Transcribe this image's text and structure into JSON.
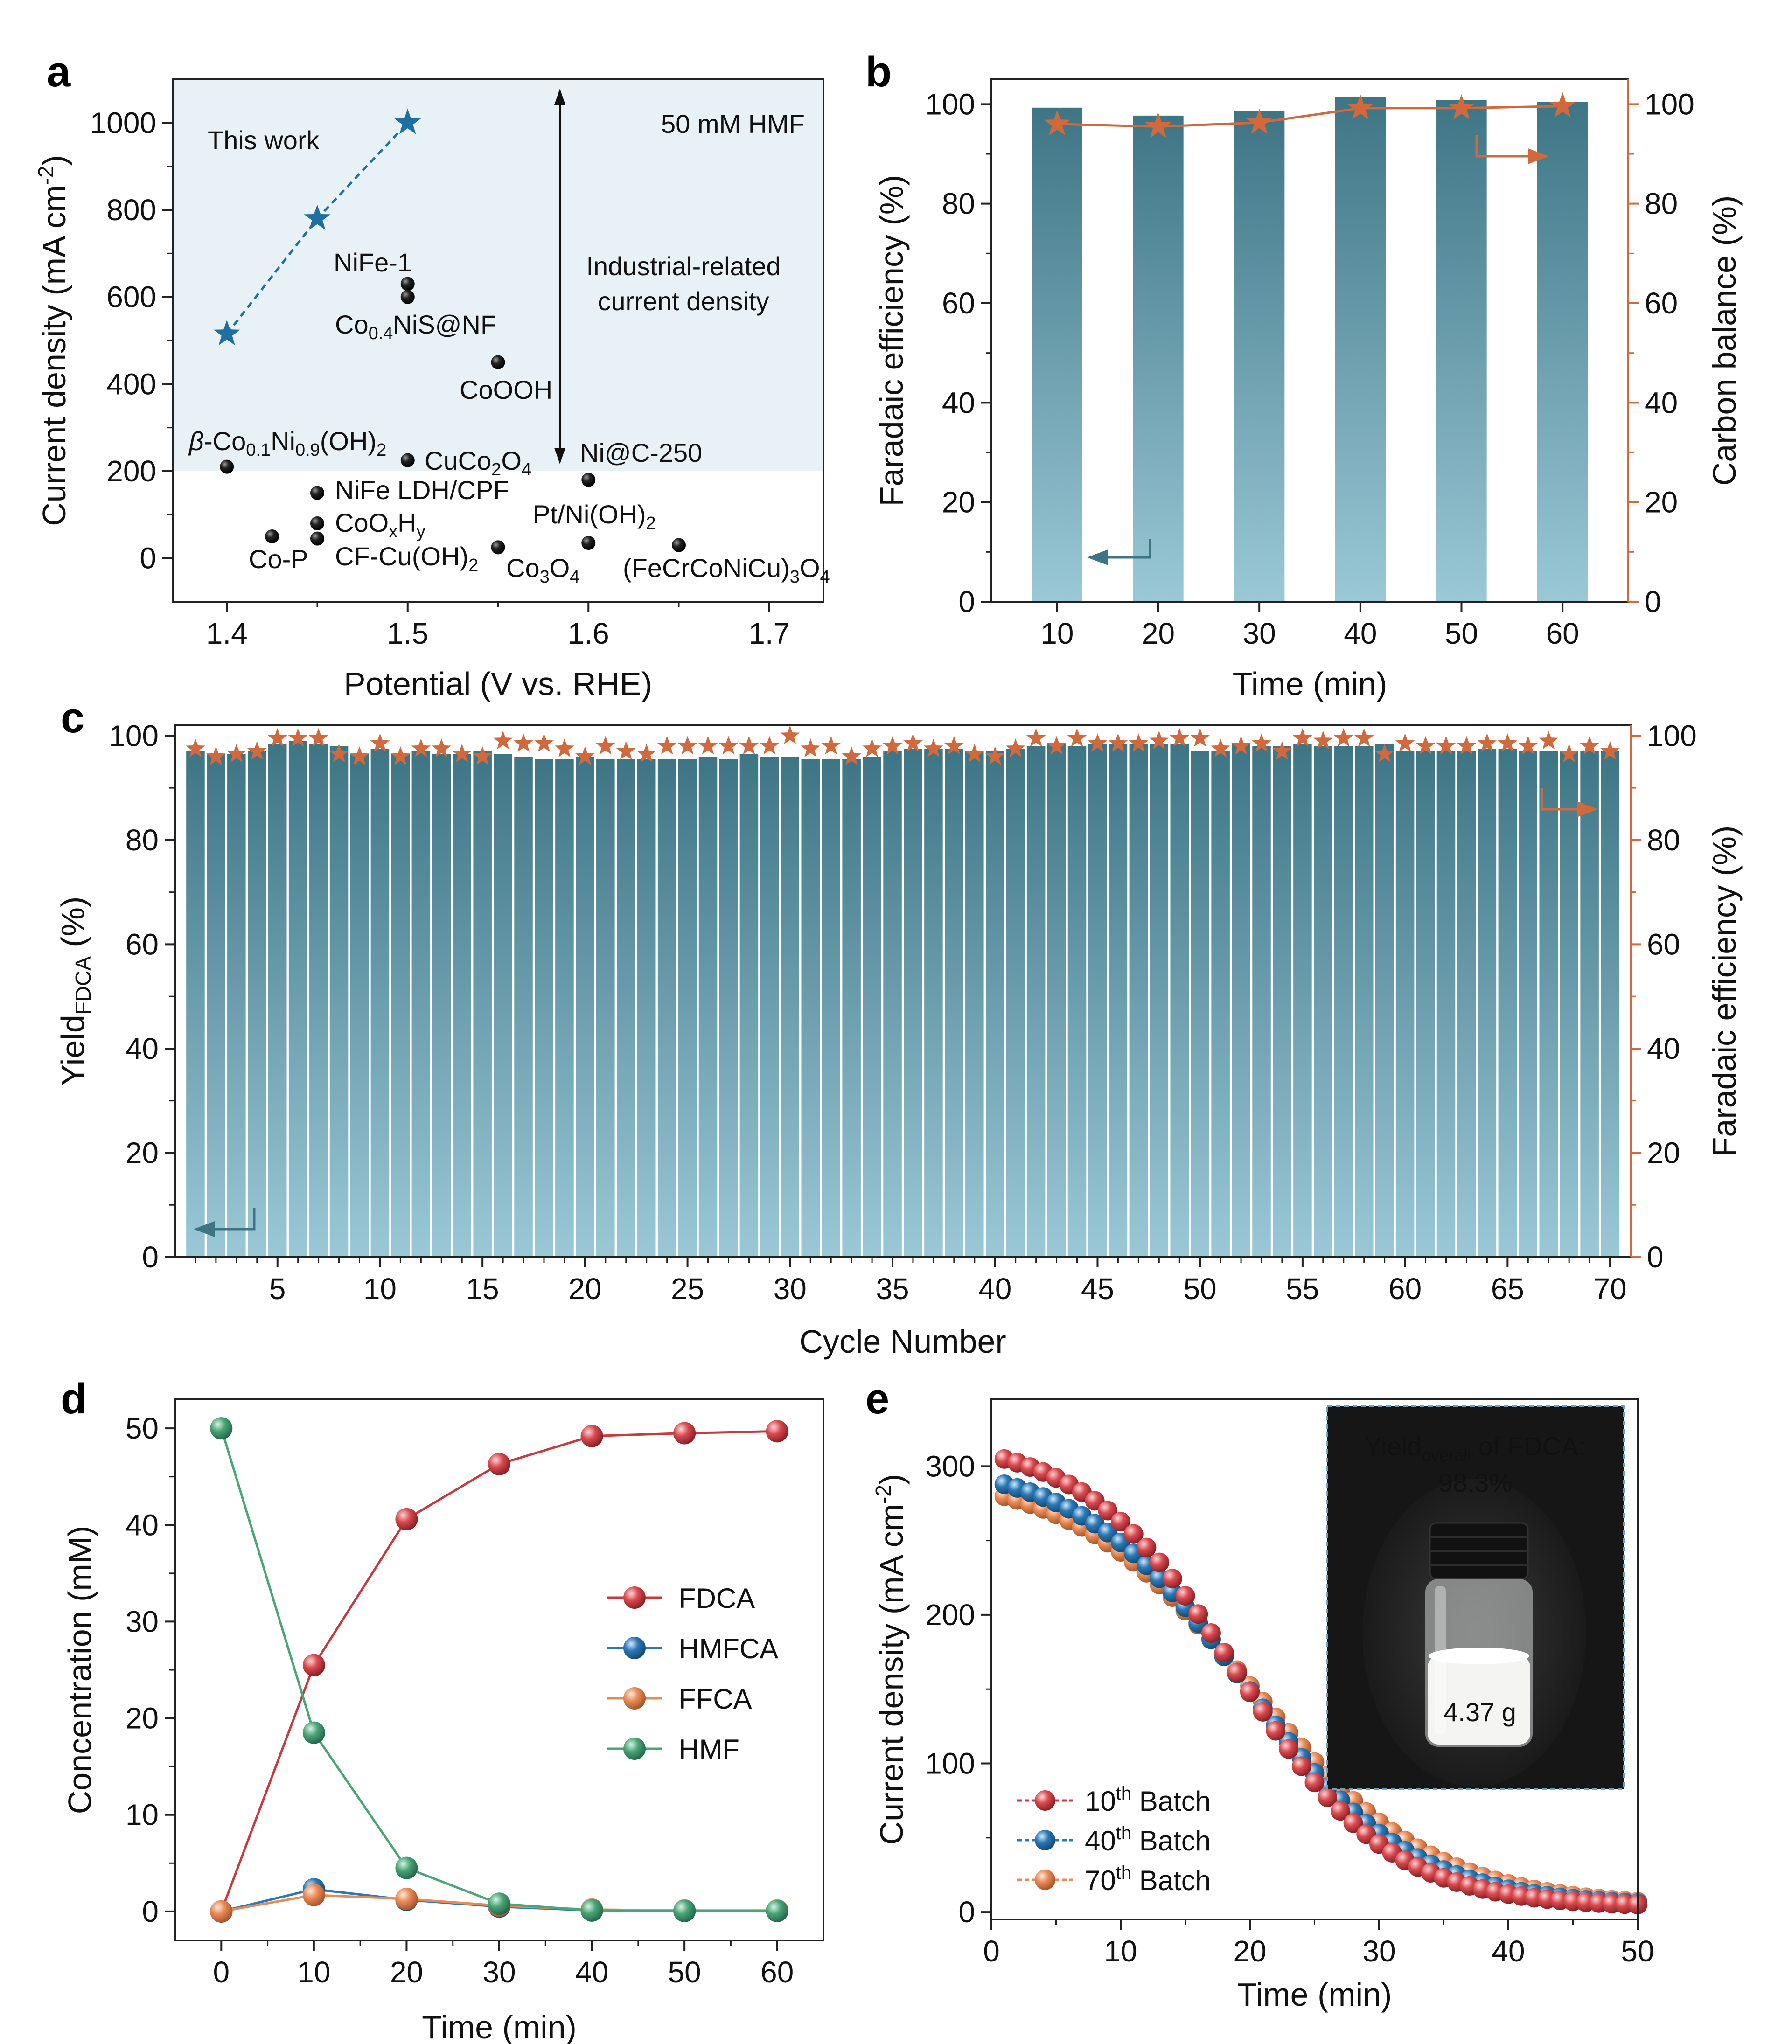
{
  "colors": {
    "bar_top": "#3e7585",
    "bar_bottom": "#9ac8d6",
    "orange": "#d2693c",
    "blue_star": "#1f6fa3",
    "shade": "#e8f1f6",
    "FDCA": "#c83a3f",
    "HMFCA": "#2a78b5",
    "FFCA": "#e88a57",
    "HMF": "#4aa577",
    "inset_bg": "#161616"
  },
  "panels": {
    "a": "a",
    "b": "b",
    "c": "c",
    "d": "d",
    "e": "e"
  },
  "chart_data": [
    {
      "id": "a",
      "type": "scatter",
      "xlabel": "Potential (V vs. RHE)",
      "ylabel": "Current density (mA cm",
      "ylabel_sup": "-2",
      "ylabel_end": ")",
      "xlim": [
        1.37,
        1.73
      ],
      "ylim": [
        -100,
        1100
      ],
      "xticks": [
        "1.4",
        "1.5",
        "1.6",
        "1.7"
      ],
      "yticks": [
        "0",
        "200",
        "400",
        "600",
        "800",
        "1000"
      ],
      "shade_above": 200,
      "this_work": {
        "label": "This work",
        "x": [
          1.4,
          1.45,
          1.5
        ],
        "y": [
          515,
          780,
          1000
        ]
      },
      "others": [
        {
          "label": "NiFe-1",
          "x": 1.5,
          "y": 630
        },
        {
          "label": "Co0.4NiS@NF",
          "x": 1.5,
          "y": 600
        },
        {
          "label": "CoOOH",
          "x": 1.55,
          "y": 450
        },
        {
          "label": "β-Co0.1Ni0.9(OH)2",
          "x": 1.4,
          "y": 210
        },
        {
          "label": "CuCo2O4",
          "x": 1.5,
          "y": 225
        },
        {
          "label": "Ni@C-250",
          "x": 1.6,
          "y": 180
        },
        {
          "label": "NiFe LDH/CPF",
          "x": 1.45,
          "y": 150
        },
        {
          "label": "CoOxHy",
          "x": 1.45,
          "y": 80
        },
        {
          "label": "CF-Cu(OH)2",
          "x": 1.45,
          "y": 45
        },
        {
          "label": "Co-P",
          "x": 1.425,
          "y": 50
        },
        {
          "label": "Co3O4",
          "x": 1.55,
          "y": 25
        },
        {
          "label": "Pt/Ni(OH)2",
          "x": 1.6,
          "y": 35
        },
        {
          "label": "(FeCrCoNiCu)3O4",
          "x": 1.65,
          "y": 30
        }
      ],
      "annotations": {
        "hmf": "50 mM HMF",
        "industrial_1": "Industrial-related",
        "industrial_2": "current density"
      }
    },
    {
      "id": "b",
      "type": "bar",
      "xlabel": "Time (min)",
      "ylabel": "Faradaic efficiency (%)",
      "ylabel_right": "Carbon balance (%)",
      "categories": [
        "10",
        "20",
        "30",
        "40",
        "50",
        "60"
      ],
      "ylim": [
        0,
        105
      ],
      "yticks": [
        "0",
        "20",
        "40",
        "60",
        "80",
        "100"
      ],
      "faradaic_efficiency": [
        99.3,
        97.7,
        98.6,
        101.4,
        100.8,
        100.5
      ],
      "carbon_balance": [
        96.0,
        95.5,
        96.3,
        99.2,
        99.2,
        99.6
      ]
    },
    {
      "id": "c",
      "type": "bar",
      "xlabel": "Cycle Number",
      "ylabel": "Yield",
      "ylabel_sub": "FDCA",
      "ylabel_end": " (%)",
      "ylabel_right": "Faradaic efficiency (%)",
      "xticks": [
        "5",
        "10",
        "15",
        "20",
        "25",
        "30",
        "35",
        "40",
        "45",
        "50",
        "55",
        "60",
        "65",
        "70"
      ],
      "xlim": [
        0,
        71
      ],
      "ylim": [
        0,
        102
      ],
      "yticks": [
        "0",
        "20",
        "40",
        "60",
        "80",
        "100"
      ],
      "yield": [
        97,
        96.5,
        96.5,
        97,
        98.5,
        99,
        98.5,
        98,
        96.5,
        97.5,
        96.5,
        97,
        96.5,
        96.5,
        97,
        96.5,
        96,
        95.5,
        95.5,
        96,
        95.5,
        95.5,
        95.5,
        95.5,
        95.5,
        96,
        95.5,
        96.5,
        96,
        96,
        95.5,
        95.5,
        95.5,
        96,
        97,
        97.5,
        97.5,
        97.5,
        97,
        97,
        97.5,
        98,
        98.5,
        98,
        98.5,
        98.5,
        98.5,
        98.5,
        98.5,
        97,
        97,
        98.5,
        98,
        98,
        98.5,
        98,
        98,
        98,
        98.5,
        97,
        97,
        97,
        97,
        97.5,
        97.5,
        97,
        97,
        97,
        97,
        97
      ],
      "faradaic_efficiency": [
        97.5,
        96,
        96.5,
        97,
        99.5,
        99.5,
        99.5,
        96.5,
        96,
        98.5,
        96,
        97.5,
        97.5,
        96.5,
        96,
        99,
        98.5,
        98.5,
        97.5,
        96,
        98,
        97,
        96.5,
        98,
        98,
        98,
        98,
        98,
        98,
        100,
        97.5,
        98,
        96,
        97.5,
        98,
        98.5,
        97.5,
        98,
        96.5,
        96,
        97.5,
        99.5,
        98,
        99.5,
        98.5,
        98.5,
        98.5,
        99,
        99.5,
        99.5,
        97.5,
        98,
        98.5,
        97,
        99.5,
        99,
        99.5,
        99.5,
        96.5,
        98.5,
        98,
        98,
        98,
        98.5,
        98.5,
        98,
        99,
        96.5,
        98,
        97
      ]
    },
    {
      "id": "d",
      "type": "line",
      "xlabel": "Time (min)",
      "ylabel": "Concentration (mM)",
      "x": [
        0,
        10,
        20,
        30,
        40,
        50,
        60
      ],
      "xlim": [
        -5,
        65
      ],
      "ylim": [
        -3,
        53
      ],
      "xticks": [
        "0",
        "10",
        "20",
        "30",
        "40",
        "50",
        "60"
      ],
      "yticks": [
        "0",
        "10",
        "20",
        "30",
        "40",
        "50"
      ],
      "series": [
        {
          "name": "FDCA",
          "values": [
            0,
            25.5,
            40.6,
            46.3,
            49.2,
            49.5,
            49.7
          ]
        },
        {
          "name": "HMFCA",
          "values": [
            0,
            2.3,
            1.2,
            0.5,
            0.1,
            0.05,
            0.05
          ]
        },
        {
          "name": "FFCA",
          "values": [
            0,
            1.7,
            1.3,
            0.6,
            0.2,
            0.1,
            0.1
          ]
        },
        {
          "name": "HMF",
          "values": [
            50,
            18.5,
            4.5,
            0.8,
            0.1,
            0.05,
            0.05
          ]
        }
      ]
    },
    {
      "id": "e",
      "type": "line",
      "xlabel": "Time (min)",
      "ylabel": "Current density (mA cm",
      "ylabel_sup": "-2",
      "ylabel_end": ")",
      "xlim": [
        0,
        50
      ],
      "ylim": [
        -5,
        345
      ],
      "xticks": [
        "0",
        "10",
        "20",
        "30",
        "40",
        "50"
      ],
      "yticks": [
        "0",
        "100",
        "200",
        "300"
      ],
      "series": [
        {
          "name": "10th Batch",
          "legend_num": "10",
          "legend_sup": "th",
          "legend_rest": " Batch",
          "start": 307,
          "end": 5,
          "midpoint": 19.0,
          "width": 5.9
        },
        {
          "name": "40th Batch",
          "legend_num": "40",
          "legend_sup": "th",
          "legend_rest": " Batch",
          "start": 290,
          "end": 6,
          "midpoint": 19.6,
          "width": 6.4
        },
        {
          "name": "70th Batch",
          "legend_num": "70",
          "legend_sup": "th",
          "legend_rest": " Batch",
          "start": 282,
          "end": 7,
          "midpoint": 20.2,
          "width": 6.9
        }
      ],
      "inset": {
        "title_main": "Yield",
        "title_sub": "overall",
        "title_rest": " of FDCA:",
        "value": "98.3%",
        "mass": "4.37 g"
      }
    }
  ]
}
